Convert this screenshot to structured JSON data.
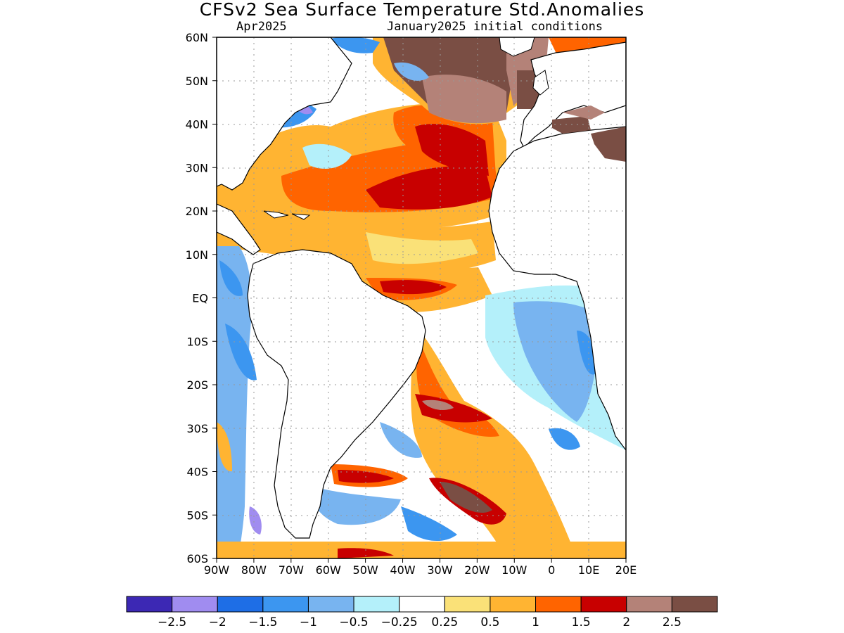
{
  "title": "CFSv2 Sea Surface Temperature Std.Anomalies",
  "forecast_month": "Apr2025",
  "init_conditions": "January2025 initial conditions",
  "map": {
    "lon_range": [
      -90,
      20
    ],
    "lat_range": [
      -60,
      60
    ],
    "lat_labels": [
      "60N",
      "50N",
      "40N",
      "30N",
      "20N",
      "10N",
      "EQ",
      "10S",
      "20S",
      "30S",
      "40S",
      "50S",
      "60S"
    ],
    "lon_labels": [
      "90W",
      "80W",
      "70W",
      "60W",
      "50W",
      "40W",
      "30W",
      "20W",
      "10W",
      "0",
      "10E",
      "20E"
    ]
  },
  "colorbar": {
    "colors": [
      "#3c28b4",
      "#a08cf0",
      "#1e6ee6",
      "#3c96f0",
      "#78b4f0",
      "#b4f0fa",
      "#ffffff",
      "#fae178",
      "#ffb432",
      "#ff6400",
      "#c80000",
      "#b48278",
      "#7a4e44"
    ],
    "labels": [
      "−2.5",
      "−2",
      "−1.5",
      "−1",
      "−0.5",
      "−0.25",
      "0.25",
      "0.5",
      "1",
      "1.5",
      "2",
      "2.5"
    ]
  }
}
